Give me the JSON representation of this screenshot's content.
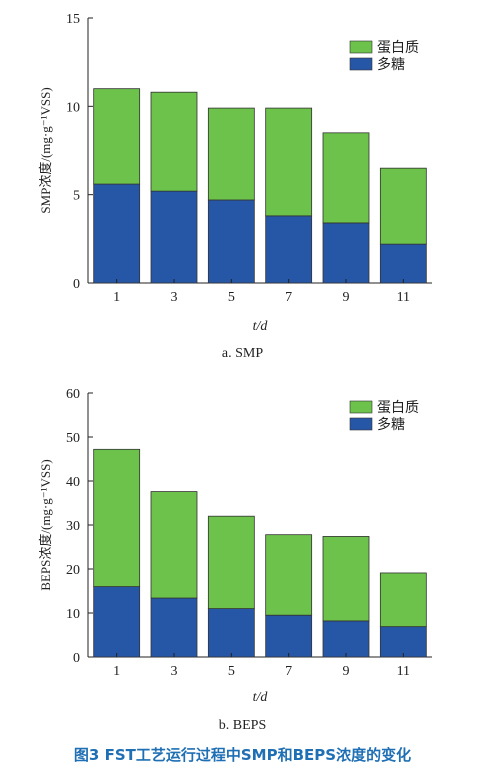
{
  "colors": {
    "protein": "#6cc24a",
    "polysaccharide": "#2656a6",
    "caption": "#1f6fb4"
  },
  "figure_caption": "图3   FST工艺运行过程中SMP和BEPS浓度的变化",
  "chart_data": [
    {
      "type": "bar",
      "stacked": true,
      "caption": "a. SMP",
      "xlabel": "t/d",
      "ylabel": "SMP浓度/(mg·g⁻¹VSS)",
      "categories": [
        "1",
        "3",
        "5",
        "7",
        "9",
        "11"
      ],
      "ylim": [
        0,
        15
      ],
      "yticks": [
        0,
        5,
        10,
        15
      ],
      "legend_position": "top-right",
      "series": [
        {
          "name": "多糖",
          "color": "#2656a6",
          "values": [
            5.6,
            5.2,
            4.7,
            3.8,
            3.4,
            2.2
          ]
        },
        {
          "name": "蛋白质",
          "color": "#6cc24a",
          "values": [
            5.4,
            5.6,
            5.2,
            6.1,
            5.1,
            4.3
          ]
        }
      ]
    },
    {
      "type": "bar",
      "stacked": true,
      "caption": "b. BEPS",
      "xlabel": "t/d",
      "ylabel": "BEPS浓度/(mg·g⁻¹VSS)",
      "categories": [
        "1",
        "3",
        "5",
        "7",
        "9",
        "11"
      ],
      "ylim": [
        0,
        60
      ],
      "yticks": [
        0,
        10,
        20,
        30,
        40,
        50,
        60
      ],
      "legend_position": "top-right",
      "series": [
        {
          "name": "多糖",
          "color": "#2656a6",
          "values": [
            16.0,
            13.4,
            11.0,
            9.5,
            8.2,
            6.9
          ]
        },
        {
          "name": "蛋白质",
          "color": "#6cc24a",
          "values": [
            31.2,
            24.2,
            21.0,
            18.3,
            19.2,
            12.2
          ]
        }
      ]
    }
  ]
}
